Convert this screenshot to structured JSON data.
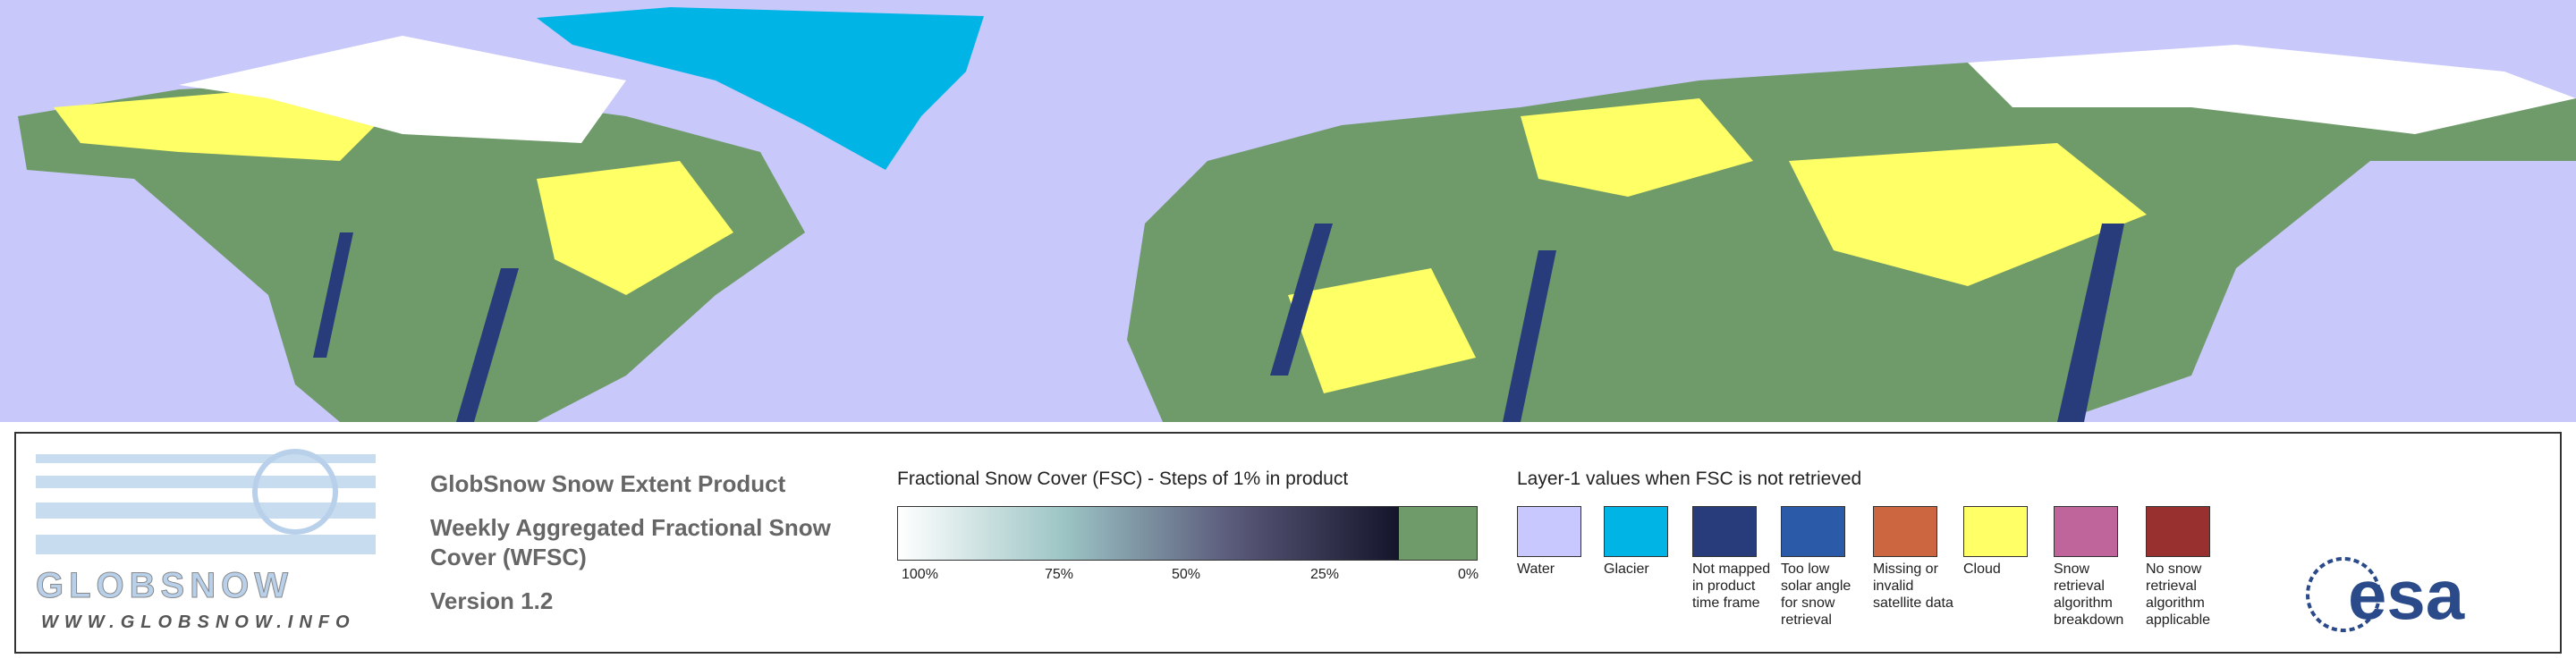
{
  "logo": {
    "name": "GLOBSNOW",
    "url": "WWW.GLOBSNOW.INFO"
  },
  "product": {
    "title": "GlobSnow Snow Extent Product",
    "subtitle": "Weekly Aggregated Fractional Snow Cover (WFSC)",
    "version": "Version 1.2"
  },
  "fsc_scale": {
    "title": "Fractional Snow Cover (FSC) - Steps of 1% in product",
    "labels": [
      "100%",
      "75%",
      "50%",
      "25%",
      "0%"
    ],
    "zero_color": "#6f9a6a"
  },
  "layer1": {
    "title": "Layer-1 values when FSC is not retrieved",
    "items": [
      {
        "label": "Water",
        "color": "#c8c8ff"
      },
      {
        "label": "Glacier",
        "color": "#00b4e6"
      },
      {
        "label": "Not mapped in product time frame",
        "color": "#283c7c"
      },
      {
        "label": "Too low solar angle for snow retrieval",
        "color": "#2a5aa8"
      },
      {
        "label": "Missing or invalid satellite data",
        "color": "#cc6640"
      },
      {
        "label": "Cloud",
        "color": "#ffff66"
      },
      {
        "label": "Snow retrieval algorithm breakdown",
        "color": "#c0649c"
      },
      {
        "label": "No snow retrieval algorithm applicable",
        "color": "#983030"
      }
    ]
  },
  "esa_logo": "esa"
}
